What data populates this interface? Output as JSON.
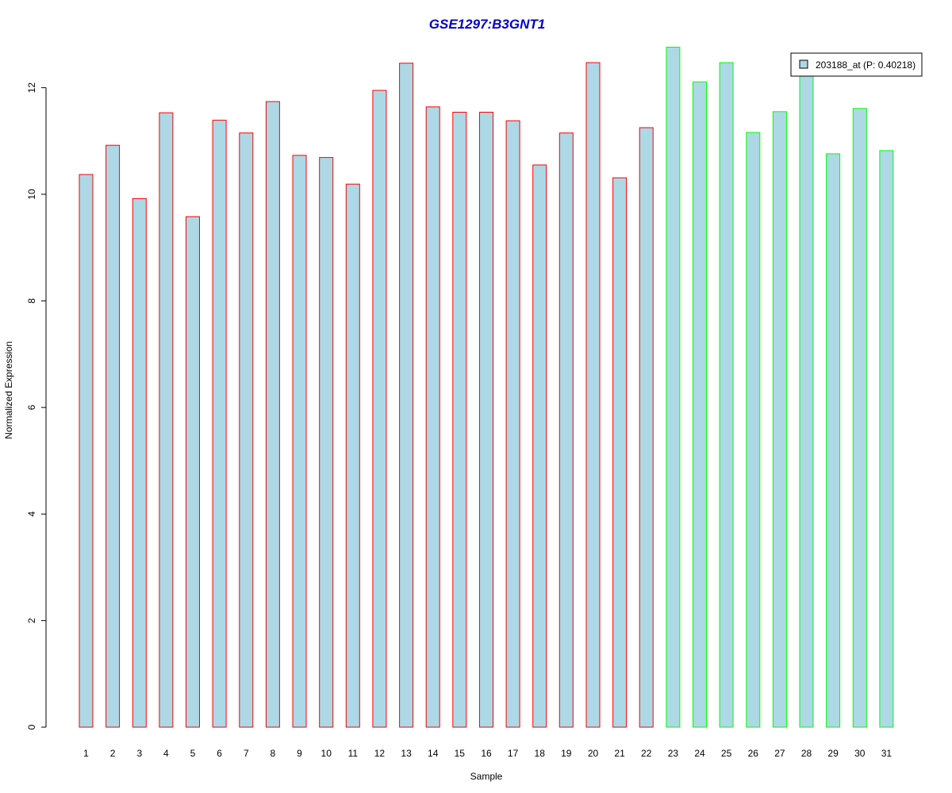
{
  "chart_data": {
    "type": "bar",
    "title": "GSE1297:B3GNT1",
    "title_color": "#0000cc",
    "xlabel": "Sample",
    "ylabel": "Normalized Expression",
    "ylim": [
      0,
      13
    ],
    "yticks": [
      0,
      2,
      4,
      6,
      8,
      10,
      12
    ],
    "categories": [
      "1",
      "2",
      "3",
      "4",
      "5",
      "6",
      "7",
      "8",
      "9",
      "10",
      "11",
      "12",
      "13",
      "14",
      "15",
      "16",
      "17",
      "18",
      "19",
      "20",
      "21",
      "22",
      "23",
      "24",
      "25",
      "26",
      "27",
      "28",
      "29",
      "30",
      "31"
    ],
    "series": [
      {
        "name": "203188_at (P: 0.40218)",
        "fill": "#add8e6",
        "values": [
          10.37,
          10.92,
          9.92,
          11.53,
          9.58,
          11.39,
          11.15,
          11.74,
          10.73,
          10.69,
          10.19,
          11.95,
          12.46,
          11.64,
          11.54,
          11.54,
          11.38,
          10.55,
          11.15,
          12.47,
          10.31,
          11.25,
          12.76,
          12.11,
          12.47,
          11.16,
          11.55,
          12.3,
          10.76,
          11.61,
          10.82
        ]
      }
    ],
    "bar_border_colors": [
      "#ff0000",
      "#ff0000",
      "#ff0000",
      "#ff0000",
      "#ff0000",
      "#ff0000",
      "#ff0000",
      "#ff0000",
      "#ff0000",
      "#ff0000",
      "#ff0000",
      "#ff0000",
      "#ff0000",
      "#ff0000",
      "#ff0000",
      "#ff0000",
      "#ff0000",
      "#ff0000",
      "#ff0000",
      "#ff0000",
      "#ff0000",
      "#ff0000",
      "#00ff00",
      "#00ff00",
      "#00ff00",
      "#00ff00",
      "#00ff00",
      "#00ff00",
      "#00ff00",
      "#00ff00",
      "#00ff00"
    ],
    "legend": {
      "placement": "top-right",
      "entries": [
        "203188_at (P: 0.40218)"
      ]
    },
    "grid": false
  }
}
